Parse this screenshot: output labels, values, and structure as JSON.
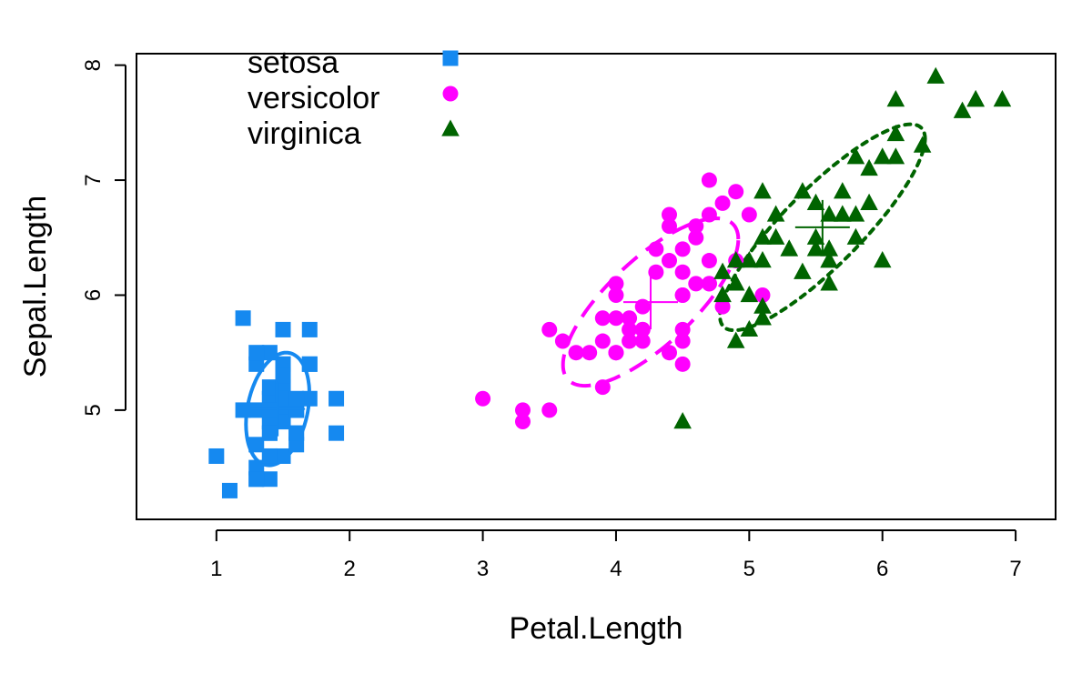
{
  "chart_data": {
    "type": "scatter",
    "xlabel": "Petal.Length",
    "ylabel": "Sepal.Length",
    "xlim": [
      0.4,
      7.3
    ],
    "ylim": [
      4.05,
      8.1
    ],
    "x_ticks": [
      1,
      2,
      3,
      4,
      5,
      6,
      7
    ],
    "y_ticks": [
      5,
      6,
      7,
      8
    ],
    "grid": false,
    "legend_position": "top-left",
    "series": [
      {
        "name": "setosa",
        "marker": "square",
        "color": "#1589F0",
        "line_style": "solid",
        "center": [
          1.46,
          5.01
        ],
        "ellipse": {
          "sd_x": 0.17,
          "sd_y": 0.35,
          "r": 0.27
        },
        "points": [
          [
            1.4,
            5.1
          ],
          [
            1.4,
            4.9
          ],
          [
            1.3,
            4.7
          ],
          [
            1.5,
            4.6
          ],
          [
            1.4,
            5.0
          ],
          [
            1.7,
            5.4
          ],
          [
            1.4,
            4.6
          ],
          [
            1.5,
            5.0
          ],
          [
            1.4,
            4.4
          ],
          [
            1.5,
            4.9
          ],
          [
            1.5,
            5.4
          ],
          [
            1.6,
            4.8
          ],
          [
            1.4,
            4.8
          ],
          [
            1.1,
            4.3
          ],
          [
            1.2,
            5.8
          ],
          [
            1.5,
            5.7
          ],
          [
            1.3,
            5.4
          ],
          [
            1.4,
            5.1
          ],
          [
            1.7,
            5.7
          ],
          [
            1.5,
            5.1
          ],
          [
            1.7,
            5.4
          ],
          [
            1.5,
            5.1
          ],
          [
            1.0,
            4.6
          ],
          [
            1.7,
            5.1
          ],
          [
            1.9,
            4.8
          ],
          [
            1.6,
            5.0
          ],
          [
            1.6,
            5.0
          ],
          [
            1.5,
            5.2
          ],
          [
            1.4,
            5.2
          ],
          [
            1.6,
            4.7
          ],
          [
            1.6,
            4.8
          ],
          [
            1.5,
            5.4
          ],
          [
            1.5,
            5.2
          ],
          [
            1.4,
            5.5
          ],
          [
            1.5,
            4.9
          ],
          [
            1.2,
            5.0
          ],
          [
            1.3,
            5.5
          ],
          [
            1.4,
            4.9
          ],
          [
            1.3,
            4.4
          ],
          [
            1.5,
            5.1
          ],
          [
            1.3,
            5.0
          ],
          [
            1.3,
            4.5
          ],
          [
            1.3,
            4.4
          ],
          [
            1.6,
            5.0
          ],
          [
            1.9,
            5.1
          ],
          [
            1.4,
            4.8
          ],
          [
            1.6,
            5.1
          ],
          [
            1.4,
            4.6
          ],
          [
            1.5,
            5.3
          ],
          [
            1.4,
            5.0
          ]
        ]
      },
      {
        "name": "versicolor",
        "marker": "circle",
        "color": "#FF00FF",
        "line_style": "dashed",
        "center": [
          4.26,
          5.94
        ],
        "ellipse": {
          "sd_x": 0.47,
          "sd_y": 0.52,
          "r": 0.75
        },
        "points": [
          [
            4.7,
            7.0
          ],
          [
            4.5,
            6.4
          ],
          [
            4.9,
            6.9
          ],
          [
            4.0,
            5.5
          ],
          [
            4.6,
            6.5
          ],
          [
            4.5,
            5.7
          ],
          [
            4.7,
            6.3
          ],
          [
            3.3,
            4.9
          ],
          [
            4.6,
            6.6
          ],
          [
            3.9,
            5.2
          ],
          [
            3.5,
            5.0
          ],
          [
            4.2,
            5.9
          ],
          [
            4.0,
            6.0
          ],
          [
            4.7,
            6.1
          ],
          [
            3.6,
            5.6
          ],
          [
            4.4,
            6.7
          ],
          [
            4.5,
            5.6
          ],
          [
            4.1,
            5.8
          ],
          [
            4.5,
            6.2
          ],
          [
            3.9,
            5.6
          ],
          [
            4.8,
            5.9
          ],
          [
            4.0,
            6.1
          ],
          [
            4.9,
            6.3
          ],
          [
            4.7,
            6.1
          ],
          [
            4.3,
            6.4
          ],
          [
            4.4,
            6.6
          ],
          [
            4.8,
            6.8
          ],
          [
            5.0,
            6.7
          ],
          [
            4.5,
            6.0
          ],
          [
            3.5,
            5.7
          ],
          [
            3.8,
            5.5
          ],
          [
            3.7,
            5.5
          ],
          [
            3.9,
            5.8
          ],
          [
            5.1,
            6.0
          ],
          [
            4.5,
            5.4
          ],
          [
            4.5,
            6.0
          ],
          [
            4.7,
            6.7
          ],
          [
            4.4,
            6.3
          ],
          [
            4.1,
            5.6
          ],
          [
            4.0,
            5.5
          ],
          [
            4.4,
            5.5
          ],
          [
            4.6,
            6.1
          ],
          [
            4.0,
            5.8
          ],
          [
            3.3,
            5.0
          ],
          [
            4.2,
            5.6
          ],
          [
            4.2,
            5.7
          ],
          [
            4.2,
            5.7
          ],
          [
            4.3,
            6.2
          ],
          [
            3.0,
            5.1
          ],
          [
            4.1,
            5.7
          ]
        ]
      },
      {
        "name": "virginica",
        "marker": "triangle",
        "color": "#006400",
        "line_style": "dotted",
        "center": [
          5.55,
          6.59
        ],
        "ellipse": {
          "sd_x": 0.55,
          "sd_y": 0.64,
          "r": 0.86
        },
        "points": [
          [
            6.0,
            6.3
          ],
          [
            5.1,
            5.8
          ],
          [
            5.9,
            7.1
          ],
          [
            5.6,
            6.3
          ],
          [
            5.8,
            6.5
          ],
          [
            6.6,
            7.6
          ],
          [
            4.5,
            4.9
          ],
          [
            6.3,
            7.3
          ],
          [
            5.8,
            6.7
          ],
          [
            6.1,
            7.2
          ],
          [
            5.1,
            6.5
          ],
          [
            5.3,
            6.4
          ],
          [
            5.5,
            6.8
          ],
          [
            5.0,
            5.7
          ],
          [
            5.1,
            5.8
          ],
          [
            5.3,
            6.4
          ],
          [
            5.5,
            6.5
          ],
          [
            6.7,
            7.7
          ],
          [
            6.9,
            7.7
          ],
          [
            5.0,
            6.0
          ],
          [
            5.7,
            6.9
          ],
          [
            4.9,
            5.6
          ],
          [
            6.7,
            7.7
          ],
          [
            4.9,
            6.3
          ],
          [
            5.7,
            6.7
          ],
          [
            6.0,
            7.2
          ],
          [
            4.8,
            6.2
          ],
          [
            4.9,
            6.1
          ],
          [
            5.6,
            6.4
          ],
          [
            5.8,
            7.2
          ],
          [
            6.1,
            7.4
          ],
          [
            6.4,
            7.9
          ],
          [
            5.6,
            6.4
          ],
          [
            5.1,
            6.3
          ],
          [
            5.6,
            6.1
          ],
          [
            6.1,
            7.7
          ],
          [
            5.6,
            6.3
          ],
          [
            5.5,
            6.4
          ],
          [
            4.8,
            6.0
          ],
          [
            5.4,
            6.9
          ],
          [
            5.6,
            6.7
          ],
          [
            5.1,
            6.9
          ],
          [
            5.1,
            5.8
          ],
          [
            5.9,
            6.8
          ],
          [
            5.7,
            6.7
          ],
          [
            5.2,
            6.7
          ],
          [
            5.0,
            6.3
          ],
          [
            5.2,
            6.5
          ],
          [
            5.4,
            6.2
          ],
          [
            5.1,
            5.9
          ]
        ]
      }
    ]
  }
}
